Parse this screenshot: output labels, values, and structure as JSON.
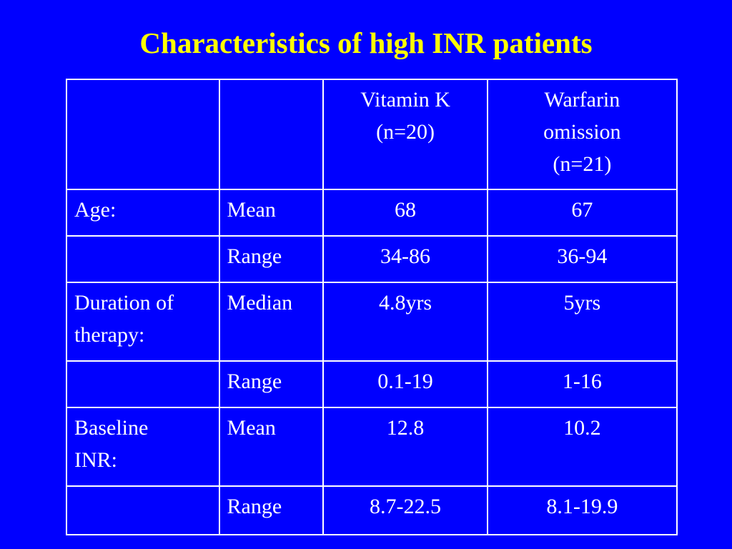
{
  "title": "Characteristics of high INR patients",
  "table": {
    "header": {
      "col1": "",
      "col2": "",
      "col3_lines": [
        "Vitamin K",
        "(n=20)"
      ],
      "col4_lines": [
        "Warfarin",
        "omission",
        "(n=21)"
      ]
    },
    "rows": [
      {
        "label_lines": [
          "Age:"
        ],
        "stat": "Mean",
        "vitamin_k": "68",
        "warfarin_omission": "67"
      },
      {
        "label_lines": [
          ""
        ],
        "stat": "Range",
        "vitamin_k": "34-86",
        "warfarin_omission": "36-94"
      },
      {
        "label_lines": [
          "Duration of",
          "therapy:"
        ],
        "stat": "Median",
        "vitamin_k": "4.8yrs",
        "warfarin_omission": "5yrs"
      },
      {
        "label_lines": [
          ""
        ],
        "stat": "Range",
        "vitamin_k": "0.1-19",
        "warfarin_omission": "1-16"
      },
      {
        "label_lines": [
          "Baseline",
          "INR:"
        ],
        "stat": "Mean",
        "vitamin_k": "12.8",
        "warfarin_omission": "10.2"
      },
      {
        "label_lines": [
          ""
        ],
        "stat": "Range",
        "vitamin_k": "8.7-22.5",
        "warfarin_omission": "8.1-19.9"
      }
    ]
  },
  "colors": {
    "background": "#0000ff",
    "title": "#ffff00",
    "text": "#ffffff",
    "grid": "#ffffff"
  }
}
